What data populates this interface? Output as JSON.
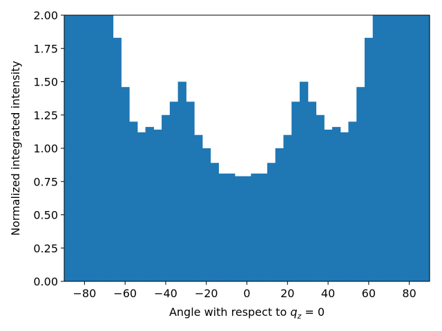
{
  "chart_data": {
    "type": "bar",
    "xlabel_text": "Angle with respect to ",
    "xlabel_math_var": "q",
    "xlabel_math_sub": "z",
    "xlabel_math_rest": " = 0",
    "ylabel": "Normalized integrated intensity",
    "xlim": [
      -90,
      90
    ],
    "ylim": [
      0,
      2
    ],
    "bin_width": 4,
    "bin_start": -90,
    "values": [
      2.0,
      2.0,
      2.0,
      2.0,
      2.0,
      2.0,
      1.83,
      1.46,
      1.2,
      1.12,
      1.16,
      1.14,
      1.25,
      1.35,
      1.5,
      1.35,
      1.1,
      1.0,
      0.89,
      0.81,
      0.81,
      0.79,
      0.79,
      0.81,
      0.81,
      0.89,
      1.0,
      1.1,
      1.35,
      1.5,
      1.35,
      1.25,
      1.14,
      1.16,
      1.12,
      1.2,
      1.46,
      1.83,
      2.0,
      2.0,
      2.0,
      2.0,
      2.0,
      2.0,
      2.0
    ],
    "x_ticks": [
      -80,
      -60,
      -40,
      -20,
      0,
      20,
      40,
      60,
      80
    ],
    "x_tick_labels": [
      "−80",
      "−60",
      "−40",
      "−20",
      "0",
      "20",
      "40",
      "60",
      "80"
    ],
    "y_ticks": [
      0.0,
      0.25,
      0.5,
      0.75,
      1.0,
      1.25,
      1.5,
      1.75,
      2.0
    ],
    "y_tick_labels": [
      "0.00",
      "0.25",
      "0.50",
      "0.75",
      "1.00",
      "1.25",
      "1.50",
      "1.75",
      "2.00"
    ],
    "bar_color": "#1f77b4",
    "grid": false,
    "legend": "none"
  }
}
